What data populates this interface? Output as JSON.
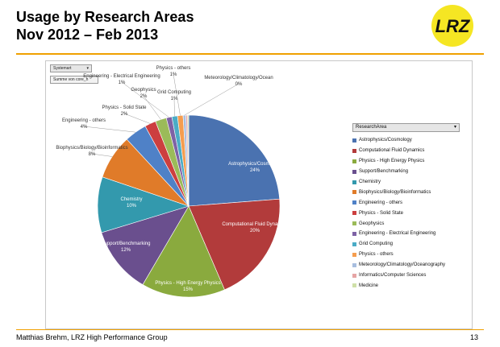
{
  "slide": {
    "title_line1": "Usage by Research Areas",
    "title_line2": "Nov 2012 – Feb 2013",
    "footer_left": "Matthias Brehm, LRZ High Performance Group",
    "page_number": "13",
    "logo_text": "LRZ",
    "accent_color": "#f0a000"
  },
  "pivot": {
    "systemart_label": "Systemart",
    "summe_label": "Summe von core_h",
    "legend_header": "ResearchArea",
    "dropdown_icon": "chevron-down-icon"
  },
  "chart_data": {
    "type": "pie",
    "title": "",
    "slices": [
      {
        "name": "Astrophysics/Cosmology",
        "label": "Astrophysics/Cosmology",
        "value": 24,
        "pct": "24%",
        "color": "#4a72b0"
      },
      {
        "name": "Computational Fluid Dynamics",
        "label": "Computational Fluid Dynamics",
        "value": 20,
        "pct": "20%",
        "color": "#b23b3b"
      },
      {
        "name": "Physics - High Energy Physics",
        "label": "Physics - High Energy Physics",
        "value": 15,
        "pct": "15%",
        "color": "#8aaa3e"
      },
      {
        "name": "Support/Benchmarking",
        "label": "Support/Benchmarking",
        "value": 12,
        "pct": "12%",
        "color": "#6a4f8e"
      },
      {
        "name": "Chemistry",
        "label": "Chemistry",
        "value": 10,
        "pct": "10%",
        "color": "#3399ad"
      },
      {
        "name": "Biophysics/Biology/Bioinformatics",
        "label": "Biophysics/Biology/Bioinformatics",
        "value": 8,
        "pct": "8%",
        "color": "#e07b29"
      },
      {
        "name": "Engineering - others",
        "label": "Engineering - others",
        "value": 4,
        "pct": "4%",
        "color": "#4f81c7"
      },
      {
        "name": "Physics - Solid State",
        "label": "Physics - Solid State",
        "value": 2,
        "pct": "2%",
        "color": "#cc3f3f"
      },
      {
        "name": "Geophysics",
        "label": "Geophysics",
        "value": 2,
        "pct": "2%",
        "color": "#9bbb59"
      },
      {
        "name": "Engineering - Electrical Engineering",
        "label": "Engineering - Electrical Engineering",
        "value": 1,
        "pct": "1%",
        "color": "#7e62a5"
      },
      {
        "name": "Grid Computing",
        "label": "Grid Computing",
        "value": 1,
        "pct": "1%",
        "color": "#4bacc6"
      },
      {
        "name": "Physics - others",
        "label": "Physics - others",
        "value": 1,
        "pct": "1%",
        "color": "#f59d4f"
      },
      {
        "name": "Meteorology/Climatology/Oceanography",
        "label": "Meteorology/Climatology/Ocean",
        "value": 0.5,
        "pct": "0%",
        "color": "#a8bedf"
      },
      {
        "name": "Informatics/Computer Sciences",
        "label": "",
        "value": 0.3,
        "pct": "",
        "color": "#e6a5a5"
      },
      {
        "name": "Medicine",
        "label": "",
        "value": 0.2,
        "pct": "",
        "color": "#cfe0a8"
      }
    ],
    "legend_position": "right"
  }
}
